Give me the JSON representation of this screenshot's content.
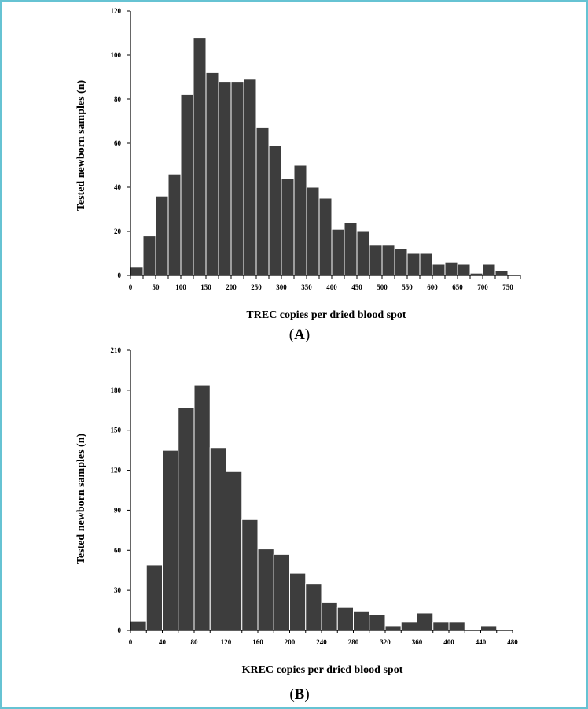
{
  "chart_data": [
    {
      "type": "bar",
      "panel_label": "A",
      "title": "",
      "xlabel": "TREC copies per dried blood spot",
      "ylabel": "Tested newborn samples (n)",
      "bin_width": 25,
      "x_start": 0,
      "xlim": [
        0,
        775
      ],
      "ylim": [
        0,
        120
      ],
      "x_ticks": [
        0,
        50,
        100,
        150,
        200,
        250,
        300,
        350,
        400,
        450,
        500,
        550,
        600,
        650,
        700,
        750
      ],
      "y_ticks": [
        0,
        20,
        40,
        60,
        80,
        100,
        120
      ],
      "values": [
        4,
        18,
        36,
        46,
        82,
        108,
        92,
        88,
        88,
        89,
        67,
        59,
        44,
        50,
        40,
        35,
        21,
        24,
        20,
        14,
        14,
        12,
        10,
        10,
        5,
        6,
        5,
        1,
        5,
        2
      ],
      "bar_color": "#3d3d3d",
      "grid": false
    },
    {
      "type": "bar",
      "panel_label": "B",
      "title": "",
      "xlabel": "KREC copies per dried blood spot",
      "ylabel": "Tested newborn samples (n)",
      "bin_width": 20,
      "x_start": 0,
      "xlim": [
        0,
        480
      ],
      "ylim": [
        0,
        210
      ],
      "x_ticks": [
        0,
        40,
        80,
        120,
        160,
        200,
        240,
        280,
        320,
        360,
        400,
        440,
        480
      ],
      "y_ticks": [
        0,
        30,
        60,
        90,
        120,
        150,
        180,
        210
      ],
      "values": [
        7,
        49,
        135,
        167,
        184,
        137,
        119,
        83,
        61,
        57,
        43,
        35,
        21,
        17,
        14,
        12,
        3,
        6,
        13,
        6,
        6,
        0,
        3
      ],
      "bar_color": "#3d3d3d",
      "grid": false
    }
  ]
}
